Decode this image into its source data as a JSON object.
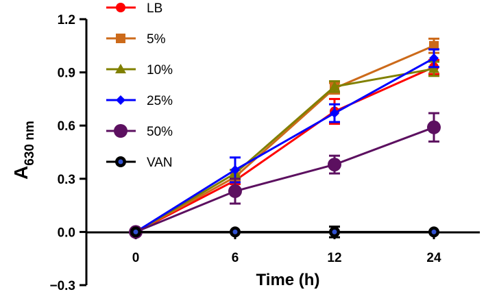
{
  "chart_data": {
    "type": "line",
    "title": "",
    "xlabel": "Time (h)",
    "ylabel_main": "A",
    "ylabel_sub": "630 nm",
    "categories": [
      "0",
      "6",
      "12",
      "24"
    ],
    "y_ticks": [
      "−0.3",
      "0.0",
      "0.3",
      "0.6",
      "0.9",
      "1.2"
    ],
    "ylim": [
      -0.3,
      1.2
    ],
    "legend_position": "top-left",
    "series": [
      {
        "name": "LB",
        "color": "#ff0000",
        "marker": "circle",
        "values": [
          0,
          0.29,
          0.68,
          0.93
        ],
        "errors": [
          0,
          0.02,
          0.07,
          0.04
        ]
      },
      {
        "name": "5%",
        "color": "#cc6a1a",
        "marker": "square",
        "values": [
          0,
          0.31,
          0.81,
          1.05
        ],
        "errors": [
          0,
          0.02,
          0.03,
          0.04
        ]
      },
      {
        "name": "10%",
        "color": "#808000",
        "marker": "triangle",
        "values": [
          0,
          0.33,
          0.82,
          0.92
        ],
        "errors": [
          0,
          0.02,
          0.03,
          0.04
        ]
      },
      {
        "name": "25%",
        "color": "#0000ff",
        "marker": "diamond",
        "values": [
          0,
          0.35,
          0.67,
          0.98
        ],
        "errors": [
          0,
          0.07,
          0.05,
          0.05
        ]
      },
      {
        "name": "50%",
        "color": "#5c1060",
        "marker": "bigcircle",
        "values": [
          0,
          0.23,
          0.38,
          0.59
        ],
        "errors": [
          0,
          0.07,
          0.05,
          0.08
        ]
      },
      {
        "name": "VAN",
        "color": "#000000",
        "marker": "blackcircle",
        "values": [
          0,
          0,
          0,
          0
        ],
        "errors": [
          0,
          0,
          0.03,
          0
        ]
      }
    ]
  }
}
